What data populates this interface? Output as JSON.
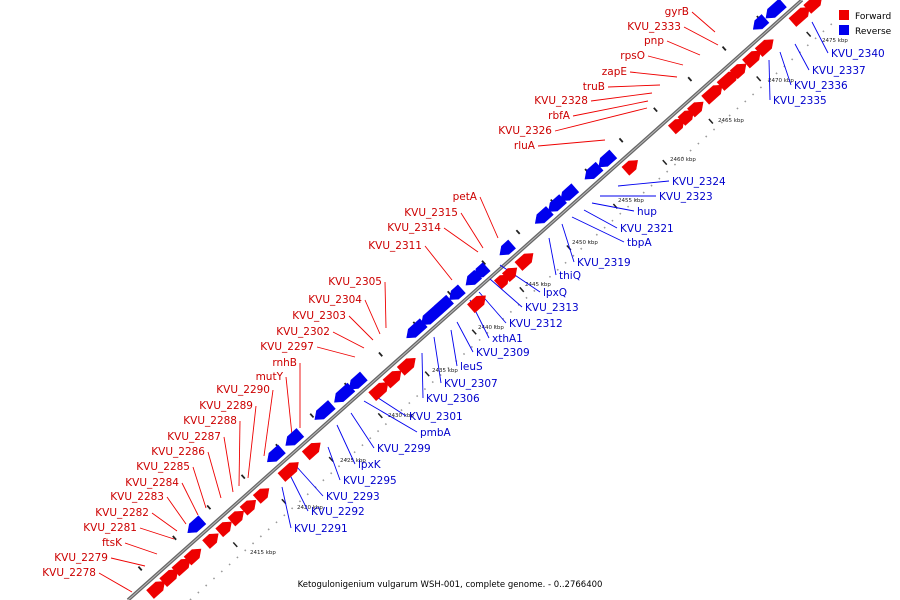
{
  "caption": "Ketogulonigenium vulgarum WSH-001, complete genome. - 0..2766400",
  "legend": {
    "forward": "Forward",
    "reverse": "Reverse",
    "forward_color": "#ee0000",
    "reverse_color": "#0000ee"
  },
  "tick_labels": [
    "2415 kbp",
    "2420 kbp",
    "2425 kbp",
    "2430 kbp",
    "2435 kbp",
    "2440 kbp",
    "2445 kbp",
    "2450 kbp",
    "2455 kbp",
    "2460 kbp",
    "2465 kbp",
    "2470 kbp",
    "2475 kbp"
  ],
  "forward_genes": [
    "gyrB",
    "KVU_2333",
    "pnp",
    "rpsO",
    "zapE",
    "truB",
    "KVU_2328",
    "rbfA",
    "KVU_2326",
    "rluA",
    "petA",
    "KVU_2315",
    "KVU_2314",
    "KVU_2311",
    "KVU_2305",
    "KVU_2304",
    "KVU_2303",
    "KVU_2302",
    "KVU_2297",
    "rnhB",
    "mutY",
    "KVU_2290",
    "KVU_2289",
    "KVU_2288",
    "KVU_2287",
    "KVU_2286",
    "KVU_2285",
    "KVU_2284",
    "KVU_2283",
    "KVU_2282",
    "KVU_2281",
    "ftsK",
    "KVU_2279",
    "KVU_2278"
  ],
  "reverse_genes": [
    "KVU_2340",
    "KVU_2337",
    "KVU_2336",
    "KVU_2335",
    "KVU_2324",
    "KVU_2323",
    "hup",
    "KVU_2321",
    "tbpA",
    "KVU_2319",
    "thiQ",
    "lpxQ",
    "KVU_2313",
    "KVU_2312",
    "xthA1",
    "KVU_2309",
    "leuS",
    "KVU_2307",
    "KVU_2306",
    "KVU_2301",
    "pmbA",
    "KVU_2299",
    "lpxK",
    "KVU_2295",
    "KVU_2293",
    "KVU_2292",
    "KVU_2291"
  ]
}
